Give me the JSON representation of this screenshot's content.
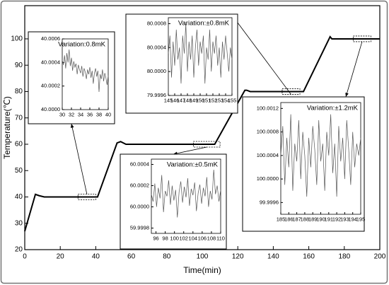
{
  "chart_data": [
    {
      "type": "line",
      "x_label": "Time(min)",
      "y_label": "Temperature(℃)",
      "xlim": [
        0,
        200
      ],
      "ylim": [
        20,
        112.6
      ],
      "xticks": [
        0,
        20,
        40,
        60,
        80,
        100,
        120,
        140,
        160,
        180,
        200
      ],
      "yticks": [
        20,
        30,
        40,
        50,
        60,
        70,
        80,
        90,
        100
      ],
      "color": "#000000",
      "x": [
        0,
        6,
        8,
        11,
        41,
        52,
        54,
        57,
        107,
        124,
        125,
        127,
        157,
        172,
        173,
        175,
        200
      ],
      "values": [
        27,
        41,
        40.5,
        40,
        40,
        60.5,
        61,
        60,
        60,
        80.5,
        80.5,
        80,
        80,
        100.8,
        100,
        100,
        100
      ]
    },
    {
      "type": "line",
      "annotation": "Variation:0.8mK",
      "color": "#555555",
      "xlim": [
        30,
        40
      ],
      "ylim": [
        40,
        40.0006
      ],
      "xticks": [
        30,
        32,
        34,
        36,
        38,
        40
      ],
      "yticks": [
        {
          "value": 40,
          "label": "40.0000"
        },
        40.0002,
        40.0004,
        40.0006
      ],
      "x": [
        30,
        30.25,
        30.5,
        30.75,
        31,
        31.25,
        31.5,
        31.75,
        32,
        32.25,
        32.5,
        32.75,
        33,
        33.25,
        33.5,
        33.75,
        34,
        34.25,
        34.5,
        34.75,
        35,
        35.25,
        35.5,
        35.75,
        36,
        36.25,
        36.5,
        36.75,
        37,
        37.25,
        37.5,
        37.75,
        38,
        38.25,
        38.5,
        38.75,
        39,
        39.25,
        39.5,
        39.75,
        40
      ],
      "values": [
        40.00042,
        40.00038,
        40.00046,
        40.00035,
        40.00048,
        40.0004,
        40.00051,
        40.00037,
        40.00044,
        40.00033,
        40.00041,
        40.00036,
        40.00039,
        40.0003,
        40.00038,
        40.00034,
        40.00031,
        40.00037,
        40.00028,
        40.00035,
        40.00032,
        40.00026,
        40.00034,
        40.0003,
        40.00036,
        40.00027,
        40.00033,
        40.00022,
        40.00031,
        40.00035,
        40.00028,
        40.00033,
        40.00015,
        40.0003,
        40.00026,
        40.00034,
        40.00024,
        40.00031,
        40.00027,
        40.00021,
        40.00029
      ]
    },
    {
      "type": "line",
      "annotation": "Variation:±0.8mK",
      "color": "#555555",
      "xlim": [
        145,
        155
      ],
      "ylim": [
        79.9996,
        80.0009
      ],
      "xticks": [
        145,
        146,
        147,
        148,
        149,
        150,
        151,
        152,
        153,
        154,
        155
      ],
      "yticks": [
        79.9996,
        {
          "value": 80,
          "label": "80.0000"
        },
        80.0004,
        80.0008
      ],
      "x": [
        145,
        145.25,
        145.5,
        145.75,
        146,
        146.25,
        146.5,
        146.75,
        147,
        147.25,
        147.5,
        147.75,
        148,
        148.25,
        148.5,
        148.75,
        149,
        149.25,
        149.5,
        149.75,
        150,
        150.25,
        150.5,
        150.75,
        151,
        151.25,
        151.5,
        151.75,
        152,
        152.25,
        152.5,
        152.75,
        153,
        153.25,
        153.5,
        153.75,
        154,
        154.25,
        154.5,
        154.75,
        155
      ],
      "values": [
        80.0003,
        80.0006,
        79.9999,
        80.0005,
        80.0001,
        80.0007,
        80.0002,
        80.0004,
        79.9998,
        80.0006,
        80.0003,
        80.0008,
        80,
        80.0005,
        80.0002,
        80.0006,
        79.9999,
        80.0004,
        80.0007,
        80.0001,
        80.0005,
        80.0003,
        80.0006,
        79.9998,
        80.0004,
        80.0002,
        80.0007,
        80,
        80.0005,
        80.0003,
        80.0006,
        80.0001,
        80.0004,
        79.9999,
        80.0005,
        80.0002,
        80.0006,
        80.0003,
        80,
        80.0004,
        80.0002
      ]
    },
    {
      "type": "line",
      "annotation": "Variation:±0.5mK",
      "color": "#555555",
      "xlim": [
        95,
        110
      ],
      "ylim": [
        59.99975,
        60.00045
      ],
      "xticks": [
        96,
        98,
        100,
        102,
        104,
        106,
        108,
        110
      ],
      "yticks": [
        59.9998,
        {
          "value": 60,
          "label": "60.0000"
        },
        60.0002,
        60.0004
      ],
      "x": [
        95,
        95.375,
        95.75,
        96.125,
        96.5,
        96.875,
        97.25,
        97.625,
        98,
        98.375,
        98.75,
        99.125,
        99.5,
        99.875,
        100.25,
        100.625,
        101,
        101.375,
        101.75,
        102.125,
        102.5,
        102.875,
        103.25,
        103.625,
        104,
        104.375,
        104.75,
        105.125,
        105.5,
        105.875,
        106.25,
        106.625,
        107,
        107.375,
        107.75,
        108.125,
        108.5,
        108.875,
        109.25,
        109.625,
        110
      ],
      "values": [
        60.00012,
        60.00005,
        60.00022,
        60,
        60.00018,
        60.00008,
        60.0003,
        59.99995,
        60.00015,
        60.0001,
        60.00025,
        60.00002,
        60.0002,
        60.00006,
        60.00016,
        59.9999,
        60.00014,
        60.00024,
        60.00004,
        60.00019,
        60.00009,
        60.00027,
        60.00001,
        60.00017,
        60.00011,
        60.00023,
        59.99996,
        60.00013,
        60.00021,
        60.00003,
        60.00018,
        60.0001,
        60.00028,
        60,
        60.00015,
        60.00007,
        60.00035,
        60.00012,
        60.0002,
        60.00005,
        60.00016
      ]
    },
    {
      "type": "line",
      "annotation": "Variation:±1.2mK",
      "color": "#555555",
      "xlim": [
        185,
        195
      ],
      "ylim": [
        99.9994,
        100.0013
      ],
      "xticks": [
        185,
        186,
        187,
        188,
        189,
        190,
        191,
        192,
        193,
        194,
        195
      ],
      "yticks": [
        99.9996,
        {
          "value": 100,
          "label": "100.0000"
        },
        100.0004,
        100.0008,
        100.0012
      ],
      "x": [
        185,
        185.25,
        185.5,
        185.75,
        186,
        186.25,
        186.5,
        186.75,
        187,
        187.25,
        187.5,
        187.75,
        188,
        188.25,
        188.5,
        188.75,
        189,
        189.25,
        189.5,
        189.75,
        190,
        190.25,
        190.5,
        190.75,
        191,
        191.25,
        191.5,
        191.75,
        192,
        192.25,
        192.5,
        192.75,
        193,
        193.25,
        193.5,
        193.75,
        194,
        194.25,
        194.5,
        194.75,
        195
      ],
      "values": [
        100.0004,
        100.0009,
        99.9999,
        100.0007,
        100.0002,
        100.0011,
        99.9998,
        100.0006,
        100.0003,
        100.001,
        100,
        100.0008,
        100.0004,
        99.9997,
        100.0007,
        100.0002,
        100.0009,
        100.0005,
        99.9999,
        100.001,
        100.0003,
        100.0006,
        99.9998,
        100.0008,
        100.0004,
        100.0011,
        100.0001,
        100.0006,
        99.9997,
        100.0009,
        100.0003,
        100.0007,
        100,
        100.001,
        100.0005,
        99.9999,
        100.0008,
        100.0002,
        100.0006,
        100.0004,
        100.0007
      ]
    }
  ]
}
